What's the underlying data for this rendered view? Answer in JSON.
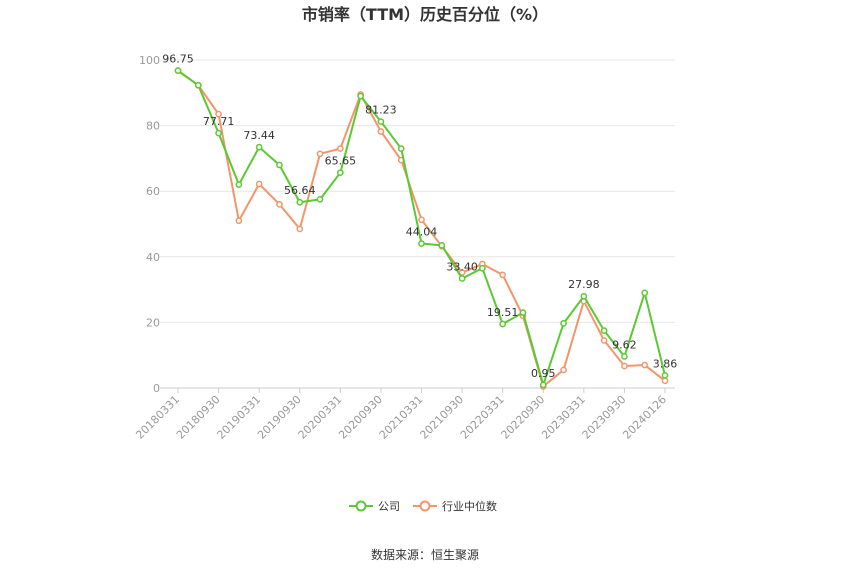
{
  "chart_data": {
    "type": "line",
    "title": "市销率（TTM）历史百分位（%）",
    "xlabel": "",
    "ylabel": "",
    "ylim": [
      0,
      100
    ],
    "yticks": [
      0,
      20,
      40,
      60,
      80,
      100
    ],
    "grid": true,
    "legend_position": "bottom",
    "x": [
      "20180331",
      "20180630",
      "20180930",
      "20181231",
      "20190331",
      "20190630",
      "20190930",
      "20191231",
      "20200331",
      "20200630",
      "20200930",
      "20201231",
      "20210331",
      "20210630",
      "20210930",
      "20211231",
      "20220331",
      "20220630",
      "20220930",
      "20221231",
      "20230331",
      "20230630",
      "20230930",
      "20231231",
      "20240126"
    ],
    "xticks": [
      "20180331",
      "20180930",
      "20190331",
      "20190930",
      "20200331",
      "20200930",
      "20210331",
      "20210930",
      "20220331",
      "20220930",
      "20230331",
      "20230930",
      "20240126"
    ],
    "series": [
      {
        "name": "公司",
        "color": "#5ac932",
        "values": [
          96.75,
          92.3,
          77.71,
          62.0,
          73.44,
          68.0,
          56.64,
          57.5,
          65.65,
          89.0,
          81.23,
          73.0,
          44.04,
          43.5,
          33.4,
          36.5,
          19.51,
          23.0,
          0.95,
          19.7,
          27.98,
          17.5,
          9.62,
          29.0,
          3.86
        ],
        "labels": {
          "0": "96.75",
          "2": "77.71",
          "4": "73.44",
          "6": "56.64",
          "8": "65.65",
          "10": "81.23",
          "12": "44.04",
          "14": "33.40",
          "16": "19.51",
          "18": "0.95",
          "20": "27.98",
          "22": "9.62",
          "24": "3.86"
        }
      },
      {
        "name": "行业中位数",
        "color": "#f3956a",
        "values": [
          96.75,
          92.3,
          83.5,
          51.0,
          62.2,
          56.0,
          48.5,
          71.4,
          73.0,
          89.5,
          78.2,
          69.5,
          51.3,
          43.2,
          35.2,
          37.8,
          34.5,
          22.0,
          0.5,
          5.5,
          26.5,
          14.5,
          6.7,
          7.0,
          2.2
        ]
      }
    ]
  },
  "footer": {
    "source": "数据来源：恒生聚源"
  }
}
